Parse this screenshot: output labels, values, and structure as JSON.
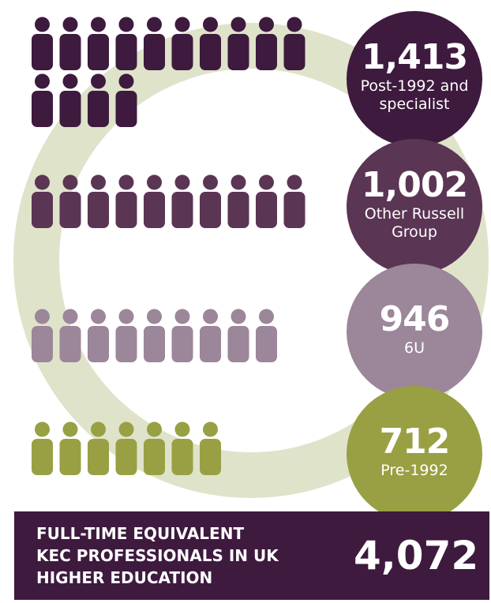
{
  "chart_data": {
    "type": "pictogram",
    "categories": [
      "Post-1992 and specialist",
      "Other Russell Group",
      "6U",
      "Pre-1992"
    ],
    "values": [
      1413,
      1002,
      946,
      712
    ],
    "value_labels": [
      "1,413",
      "1,002",
      "946",
      "712"
    ],
    "colors": [
      "#3d1a3e",
      "#5b3554",
      "#9c8699",
      "#99a043"
    ],
    "total": {
      "lines": [
        "FULL-TIME EQUIVALENT",
        "KEC PROFESSIONALS IN UK",
        "HIGHER EDUCATION"
      ],
      "value": 4072,
      "label": "4,072"
    }
  }
}
